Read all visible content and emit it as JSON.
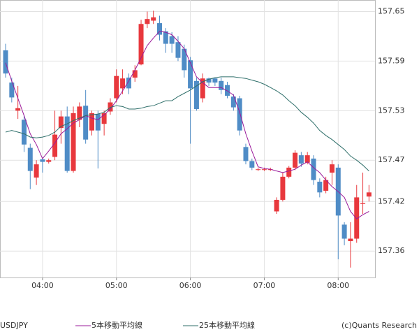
{
  "chart_data": {
    "type": "candlestick",
    "symbol": "USDJPY",
    "credit": "(c)Quants Research",
    "categories": [
      null,
      null,
      null,
      null,
      null,
      null,
      "04:00",
      null,
      null,
      null,
      null,
      null,
      null,
      null,
      null,
      null,
      null,
      null,
      "05:00",
      null,
      null,
      null,
      null,
      null,
      null,
      null,
      null,
      null,
      null,
      null,
      "06:00",
      null,
      null,
      null,
      null,
      null,
      null,
      null,
      null,
      null,
      null,
      null,
      "07:00",
      null,
      null,
      null,
      null,
      null,
      null,
      null,
      null,
      null,
      null,
      null,
      "08:00",
      null,
      null,
      null,
      null,
      null
    ],
    "open": [
      157.603,
      157.564,
      157.53,
      157.519,
      157.485,
      157.449,
      157.471,
      157.468,
      157.474,
      157.509,
      157.523,
      157.457,
      157.519,
      157.536,
      157.506,
      157.526,
      157.514,
      157.529,
      157.545,
      157.557,
      157.57,
      157.57,
      157.586,
      157.635,
      157.639,
      157.636,
      157.626,
      157.62,
      157.613,
      157.605,
      157.591,
      157.566,
      157.545,
      157.569,
      157.569,
      157.566,
      157.561,
      157.547,
      157.545,
      157.486,
      157.469,
      157.459,
      157.459,
      157.459,
      157.408,
      157.422,
      157.45,
      157.461,
      157.476,
      157.467,
      157.472,
      157.444,
      157.433,
      157.455,
      157.461,
      157.392,
      157.372,
      157.375,
      157.417,
      157.426
    ],
    "high": [
      157.611,
      157.57,
      157.56,
      157.525,
      157.49,
      157.47,
      157.473,
      157.472,
      157.53,
      157.53,
      157.535,
      157.535,
      157.54,
      157.555,
      157.53,
      157.53,
      157.53,
      157.545,
      157.58,
      157.58,
      157.575,
      157.585,
      157.64,
      157.65,
      157.651,
      157.645,
      157.63,
      157.625,
      157.62,
      157.61,
      157.595,
      157.57,
      157.575,
      157.57,
      157.57,
      157.57,
      157.565,
      157.55,
      157.548,
      157.49,
      157.472,
      157.461,
      157.461,
      157.461,
      157.425,
      157.455,
      157.463,
      157.482,
      157.48,
      157.48,
      157.476,
      157.448,
      157.45,
      157.47,
      157.465,
      157.395,
      157.395,
      157.44,
      157.455,
      157.44
    ],
    "low": [
      157.57,
      157.54,
      157.52,
      157.48,
      157.435,
      157.44,
      157.455,
      157.466,
      157.47,
      157.49,
      157.455,
      157.455,
      157.51,
      157.49,
      157.5,
      157.46,
      157.5,
      157.525,
      157.54,
      157.55,
      157.55,
      157.565,
      157.585,
      157.63,
      157.635,
      157.615,
      157.6,
      157.6,
      157.59,
      157.57,
      157.49,
      157.53,
      157.54,
      157.56,
      157.56,
      157.55,
      157.545,
      157.53,
      157.5,
      157.465,
      157.458,
      157.457,
      157.457,
      157.457,
      157.405,
      157.42,
      157.448,
      157.458,
      157.462,
      157.465,
      157.44,
      157.425,
      157.43,
      157.44,
      157.35,
      157.367,
      157.34,
      157.37,
      157.405,
      157.42
    ],
    "close": [
      157.575,
      157.546,
      157.533,
      157.489,
      157.457,
      157.465,
      157.468,
      157.47,
      157.501,
      157.523,
      157.457,
      157.527,
      157.535,
      157.495,
      157.527,
      157.506,
      157.527,
      157.54,
      157.572,
      157.569,
      157.557,
      157.579,
      157.635,
      157.641,
      157.643,
      157.622,
      157.611,
      157.611,
      157.594,
      157.579,
      157.557,
      157.532,
      157.569,
      157.564,
      157.564,
      157.555,
      157.548,
      157.534,
      157.506,
      157.469,
      157.461,
      157.459,
      157.459,
      157.459,
      157.422,
      157.45,
      157.461,
      157.479,
      157.466,
      157.476,
      157.446,
      157.431,
      157.446,
      157.465,
      157.403,
      157.375,
      157.375,
      157.425,
      157.418,
      157.431
    ],
    "up_color": "#e8383d",
    "down_color": "#4f8cc6",
    "lines": [
      {
        "name": "5本移動平均線",
        "color": "#9b1b9b",
        "values": [
          157.588,
          157.566,
          157.545,
          157.524,
          157.502,
          157.489,
          157.472,
          157.481,
          157.491,
          157.502,
          157.508,
          157.515,
          157.519,
          157.524,
          157.521,
          157.519,
          157.525,
          157.532,
          157.542,
          157.554,
          157.566,
          157.579,
          157.594,
          157.609,
          157.618,
          157.626,
          157.625,
          157.622,
          157.614,
          157.605,
          157.588,
          157.571,
          157.564,
          157.558,
          157.558,
          157.558,
          157.554,
          157.549,
          157.528,
          157.502,
          157.481,
          157.462,
          157.46,
          157.459,
          157.457,
          157.455,
          157.457,
          157.459,
          157.464,
          157.468,
          157.461,
          157.455,
          157.446,
          157.438,
          157.432,
          157.425,
          157.408,
          157.399,
          157.404,
          157.408
        ]
      },
      {
        "name": "25本移動平均線",
        "color": "#2f6f6a",
        "values": [
          157.504,
          157.506,
          157.504,
          157.502,
          157.498,
          157.497,
          157.498,
          157.5,
          157.504,
          157.511,
          157.514,
          157.518,
          157.521,
          157.524,
          157.525,
          157.526,
          157.528,
          157.534,
          157.536,
          157.535,
          157.532,
          157.532,
          157.533,
          157.535,
          157.536,
          157.539,
          157.542,
          157.542,
          157.547,
          157.551,
          157.555,
          157.56,
          157.565,
          157.568,
          157.57,
          157.571,
          157.571,
          157.571,
          157.57,
          157.569,
          157.567,
          157.565,
          157.562,
          157.558,
          157.554,
          157.549,
          157.542,
          157.536,
          157.528,
          157.522,
          157.515,
          157.506,
          157.5,
          157.495,
          157.489,
          157.483,
          157.475,
          157.47,
          157.464,
          157.457
        ]
      }
    ],
    "ylim": [
      157.328,
      157.664
    ],
    "yticks": [
      157.65,
      157.59,
      157.53,
      157.47,
      157.42,
      157.36
    ],
    "grid": true
  }
}
